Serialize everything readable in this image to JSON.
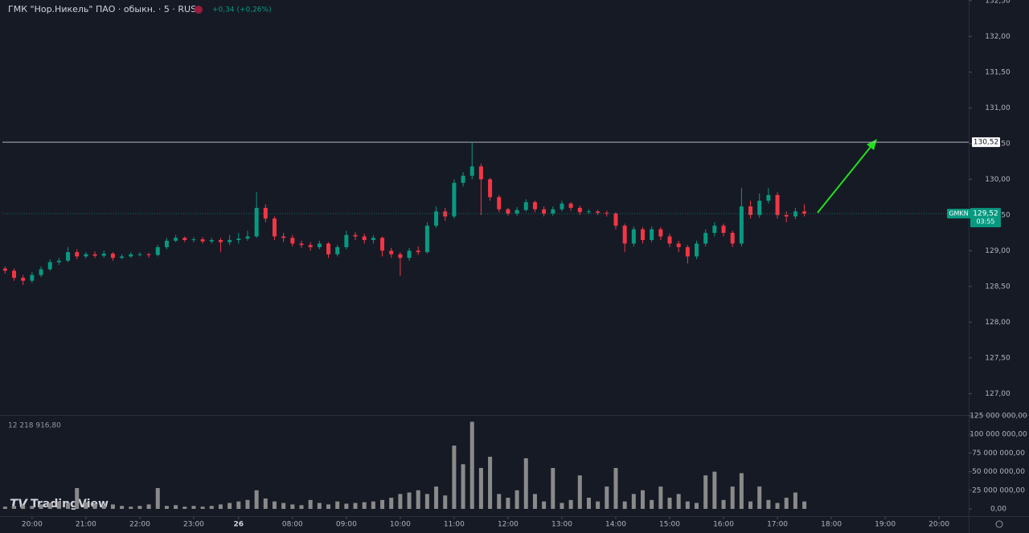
{
  "watermark": "TradingView",
  "chart_data": [
    {
      "type": "candlestick",
      "title": "ГМК \"Нор.Никель\" ПАО · обыкн. · 5 · RUS",
      "change_label": "+0,34 (+0,26%)",
      "up_color": "#089981",
      "down_color": "#f23645",
      "xlim": [
        -0.3,
        107.3
      ],
      "xticks": [
        {
          "value": 3,
          "label": "20:00"
        },
        {
          "value": 9,
          "label": "21:00"
        },
        {
          "value": 15,
          "label": "22:00"
        },
        {
          "value": 21,
          "label": "23:00"
        },
        26,
        {
          "value": 32,
          "label": "08:00"
        },
        {
          "value": 38,
          "label": "09:00"
        },
        {
          "value": 44,
          "label": "10:00"
        },
        {
          "value": 50,
          "label": "11:00"
        },
        {
          "value": 56,
          "label": "12:00"
        },
        {
          "value": 62,
          "label": "13:00"
        },
        {
          "value": 68,
          "label": "14:00"
        },
        {
          "value": 74,
          "label": "15:00"
        },
        {
          "value": 80,
          "label": "16:00"
        },
        {
          "value": 86,
          "label": "17:00"
        },
        {
          "value": 92,
          "label": "18:00"
        },
        {
          "value": 98,
          "label": "19:00"
        },
        {
          "value": 104,
          "label": "20:00"
        }
      ],
      "ylim": [
        126.7,
        132.51
      ],
      "yticks": [
        {
          "value": 127,
          "label": "127,00"
        },
        {
          "value": 127.5,
          "label": "127,50"
        },
        {
          "value": 128,
          "label": "128,00"
        },
        {
          "value": 128.5,
          "label": "128,50"
        },
        {
          "value": 129,
          "label": "129,00"
        },
        {
          "value": 129.5,
          "label": "129,50"
        },
        {
          "value": 130,
          "label": "130,00"
        },
        {
          "value": 130.5,
          "label": "130,50"
        },
        {
          "value": 131,
          "label": "131,00"
        },
        {
          "value": 131.5,
          "label": "131,50"
        },
        {
          "value": 132,
          "label": "132,00"
        },
        {
          "value": 132.5,
          "label": "132,50"
        }
      ],
      "hline": {
        "value": 130.52,
        "label": "130,52"
      },
      "last": {
        "value": 129.52,
        "label": "129,52",
        "symbol": "GMKN",
        "countdown": "03:55"
      },
      "open": [
        128.75,
        128.72,
        128.62,
        128.58,
        128.66,
        128.74,
        128.84,
        128.86,
        128.98,
        128.92,
        128.95,
        128.93,
        128.96,
        128.9,
        128.92,
        128.95,
        128.95,
        128.94,
        129.05,
        129.14,
        129.18,
        129.15,
        129.16,
        129.13,
        129.15,
        129.12,
        129.15,
        129.17,
        129.2,
        129.6,
        129.45,
        129.2,
        129.18,
        129.1,
        129.08,
        129.05,
        129.1,
        128.95,
        129.05,
        129.22,
        129.2,
        129.15,
        129.18,
        129.0,
        128.95,
        128.9,
        129.0,
        128.98,
        129.35,
        129.55,
        129.48,
        129.95,
        130.05,
        130.18,
        130.0,
        129.75,
        129.58,
        129.52,
        129.57,
        129.68,
        129.58,
        129.52,
        129.58,
        129.66,
        129.6,
        129.54,
        129.55,
        129.53,
        129.52,
        129.35,
        129.1,
        129.3,
        129.15,
        129.3,
        129.2,
        129.1,
        129.05,
        128.92,
        129.1,
        129.25,
        129.35,
        129.25,
        129.1,
        129.62,
        129.5,
        129.7,
        129.78,
        129.5,
        129.48,
        129.55
      ],
      "high": [
        128.78,
        128.75,
        128.66,
        128.7,
        128.78,
        128.88,
        128.9,
        129.05,
        129.02,
        128.98,
        128.99,
        129.0,
        128.98,
        128.95,
        128.98,
        128.98,
        128.97,
        129.08,
        129.18,
        129.22,
        129.2,
        129.19,
        129.19,
        129.18,
        129.18,
        129.22,
        129.25,
        129.28,
        129.82,
        129.65,
        129.48,
        129.25,
        129.22,
        129.14,
        129.12,
        129.14,
        129.12,
        129.08,
        129.28,
        129.26,
        129.24,
        129.22,
        129.2,
        129.04,
        128.98,
        129.04,
        129.06,
        129.4,
        129.62,
        129.6,
        130.0,
        130.1,
        130.51,
        130.22,
        130.02,
        129.78,
        129.6,
        129.61,
        129.72,
        129.7,
        129.62,
        129.62,
        129.7,
        129.68,
        129.63,
        129.58,
        129.57,
        129.56,
        129.54,
        129.38,
        129.34,
        129.33,
        129.34,
        129.33,
        129.24,
        129.14,
        129.08,
        129.14,
        129.3,
        129.4,
        129.38,
        129.28,
        129.88,
        129.7,
        129.8,
        129.88,
        129.82,
        129.55,
        129.6,
        129.65
      ],
      "low": [
        128.68,
        128.58,
        128.52,
        128.55,
        128.63,
        128.72,
        128.8,
        128.84,
        128.88,
        128.89,
        128.9,
        128.9,
        128.86,
        128.88,
        128.9,
        128.92,
        128.9,
        128.92,
        129.02,
        129.12,
        129.12,
        129.12,
        129.1,
        129.1,
        128.98,
        129.08,
        129.1,
        129.14,
        129.18,
        129.4,
        129.15,
        129.12,
        129.06,
        129.04,
        129.0,
        129.02,
        128.9,
        128.92,
        129.02,
        129.15,
        129.1,
        129.1,
        128.92,
        128.9,
        128.65,
        128.86,
        128.94,
        128.96,
        129.32,
        129.42,
        129.45,
        129.9,
        130.0,
        129.5,
        129.7,
        129.54,
        129.49,
        129.49,
        129.55,
        129.54,
        129.48,
        129.49,
        129.55,
        129.56,
        129.5,
        129.51,
        129.5,
        129.48,
        129.3,
        128.98,
        129.06,
        129.1,
        129.12,
        129.15,
        129.05,
        128.98,
        128.82,
        128.88,
        129.06,
        129.2,
        129.2,
        129.05,
        129.06,
        129.45,
        129.46,
        129.66,
        129.45,
        129.4,
        129.44,
        129.48
      ],
      "close": [
        128.72,
        128.62,
        128.58,
        128.66,
        128.74,
        128.84,
        128.86,
        128.98,
        128.92,
        128.95,
        128.93,
        128.96,
        128.9,
        128.92,
        128.95,
        128.95,
        128.94,
        129.05,
        129.14,
        129.18,
        129.15,
        129.16,
        129.13,
        129.15,
        129.12,
        129.15,
        129.17,
        129.2,
        129.6,
        129.45,
        129.2,
        129.18,
        129.1,
        129.08,
        129.05,
        129.1,
        128.95,
        129.05,
        129.22,
        129.2,
        129.15,
        129.18,
        129.0,
        128.95,
        128.9,
        129.0,
        128.98,
        129.35,
        129.55,
        129.48,
        129.95,
        130.05,
        130.18,
        130.0,
        129.75,
        129.58,
        129.52,
        129.57,
        129.68,
        129.58,
        129.52,
        129.58,
        129.66,
        129.6,
        129.54,
        129.55,
        129.53,
        129.52,
        129.35,
        129.1,
        129.3,
        129.15,
        129.3,
        129.2,
        129.1,
        129.05,
        128.92,
        129.1,
        129.25,
        129.35,
        129.25,
        129.1,
        129.62,
        129.5,
        129.7,
        129.78,
        129.5,
        129.48,
        129.55,
        129.52
      ]
    },
    {
      "type": "bar",
      "legend_value": "12 218 916,80",
      "color": "#8a8a8a",
      "ylim": [
        -6500000,
        125000000
      ],
      "yticks": [
        {
          "value": 0,
          "label": "0,00"
        },
        {
          "value": 25000000,
          "label": "25 000 000,00"
        },
        {
          "value": 50000000,
          "label": "50 000 000,00"
        },
        {
          "value": 75000000,
          "label": "75 000 000,00"
        },
        {
          "value": 100000000,
          "label": "100 000 000,00"
        },
        {
          "value": 125000000,
          "label": "125 000 000,00"
        }
      ],
      "values": [
        3000000,
        4000000,
        5000000,
        4000000,
        6000000,
        8000000,
        10000000,
        8000000,
        28000000,
        9000000,
        7000000,
        5000000,
        6000000,
        4000000,
        3000000,
        4000000,
        6000000,
        28000000,
        4000000,
        5000000,
        3000000,
        4000000,
        3000000,
        4000000,
        6000000,
        8000000,
        10000000,
        12000000,
        25000000,
        14000000,
        10000000,
        8000000,
        6000000,
        5000000,
        12000000,
        8000000,
        6000000,
        10000000,
        7000000,
        8000000,
        9000000,
        10000000,
        12000000,
        15000000,
        20000000,
        22000000,
        25000000,
        20000000,
        30000000,
        18000000,
        85000000,
        60000000,
        117000000,
        55000000,
        70000000,
        20000000,
        15000000,
        25000000,
        68000000,
        20000000,
        10000000,
        55000000,
        8000000,
        12000000,
        45000000,
        15000000,
        10000000,
        30000000,
        55000000,
        10000000,
        20000000,
        25000000,
        12000000,
        30000000,
        15000000,
        20000000,
        10000000,
        8000000,
        45000000,
        50000000,
        12000000,
        30000000,
        48000000,
        10000000,
        30000000,
        12000000,
        8000000,
        15000000,
        22000000,
        10000000
      ]
    }
  ]
}
